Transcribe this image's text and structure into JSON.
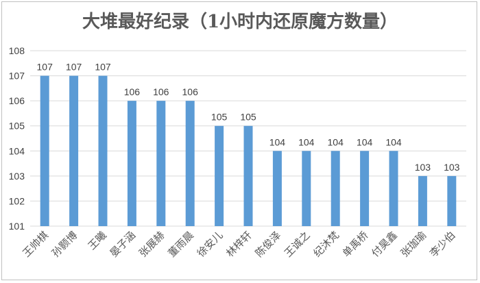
{
  "chart_data": {
    "type": "bar",
    "title": "大堆最好纪录（1小时内还原魔方数量）",
    "categories": [
      "王帅棋",
      "孙颢博",
      "王曦",
      "晏子涵",
      "张展赫",
      "董雨晨",
      "徐安儿",
      "林梓轩",
      "陈俊泽",
      "王诚之",
      "纪沐梵",
      "单禹桥",
      "付昊鑫",
      "张珈瑜",
      "李少伯"
    ],
    "values": [
      107,
      107,
      107,
      106,
      106,
      106,
      105,
      105,
      104,
      104,
      104,
      104,
      104,
      103,
      103
    ],
    "ylim": [
      101,
      108
    ],
    "yticks": [
      101,
      102,
      103,
      104,
      105,
      106,
      107,
      108
    ],
    "xlabel": "",
    "ylabel": "",
    "grid": true,
    "bar_color": "#5b9bd5",
    "grid_color": "#d9d9d9"
  }
}
